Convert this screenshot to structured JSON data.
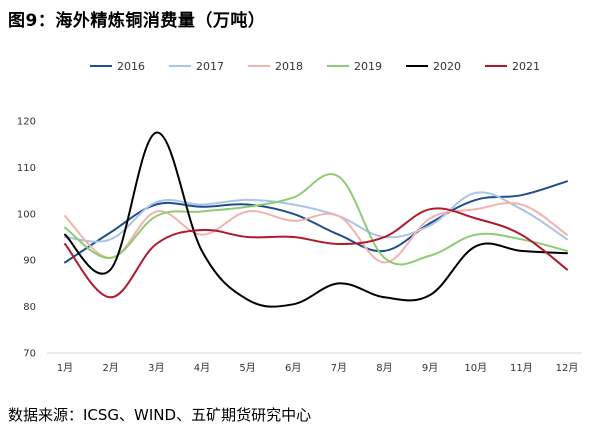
{
  "figure": {
    "title": "图9：海外精炼铜消费量（万吨）",
    "source": "数据来源：ICSG、WIND、五矿期货研究中心"
  },
  "chart_data": {
    "type": "line",
    "title": "",
    "xlabel": "",
    "ylabel": "",
    "categories": [
      "1月",
      "2月",
      "3月",
      "4月",
      "5月",
      "6月",
      "7月",
      "8月",
      "9月",
      "10月",
      "11月",
      "12月"
    ],
    "ylim": [
      70,
      120
    ],
    "yticks": [
      70,
      80,
      90,
      100,
      110,
      120
    ],
    "grid": false,
    "smooth": true,
    "legend": "top",
    "series": [
      {
        "name": "2016",
        "color": "#1f4e8c",
        "values": [
          89.5,
          96,
          102,
          101.5,
          102,
          100,
          95.5,
          92,
          98,
          103,
          104,
          107
        ]
      },
      {
        "name": "2017",
        "color": "#a9c4e6",
        "values": [
          95,
          94.5,
          102.5,
          102,
          103,
          102,
          99.5,
          95,
          97.5,
          104.5,
          101,
          94.5
        ]
      },
      {
        "name": "2018",
        "color": "#f2b2b0",
        "values": [
          99.5,
          90.5,
          100.5,
          95.5,
          100.5,
          98.5,
          99.5,
          89.5,
          99,
          101,
          102,
          95.5
        ]
      },
      {
        "name": "2019",
        "color": "#8dcc74",
        "values": [
          97,
          90.5,
          99.5,
          100.5,
          101.5,
          103.5,
          108,
          90.5,
          91,
          95.5,
          94.5,
          92
        ]
      },
      {
        "name": "2020",
        "color": "#000000",
        "values": [
          95.5,
          88,
          117.5,
          92,
          81.5,
          80.5,
          85,
          82,
          82.5,
          93,
          92,
          91.5
        ]
      },
      {
        "name": "2021",
        "color": "#b01a2c",
        "values": [
          93.5,
          82,
          93.5,
          96.5,
          95,
          95,
          93.5,
          95,
          101,
          99,
          95.5,
          88
        ]
      }
    ]
  }
}
